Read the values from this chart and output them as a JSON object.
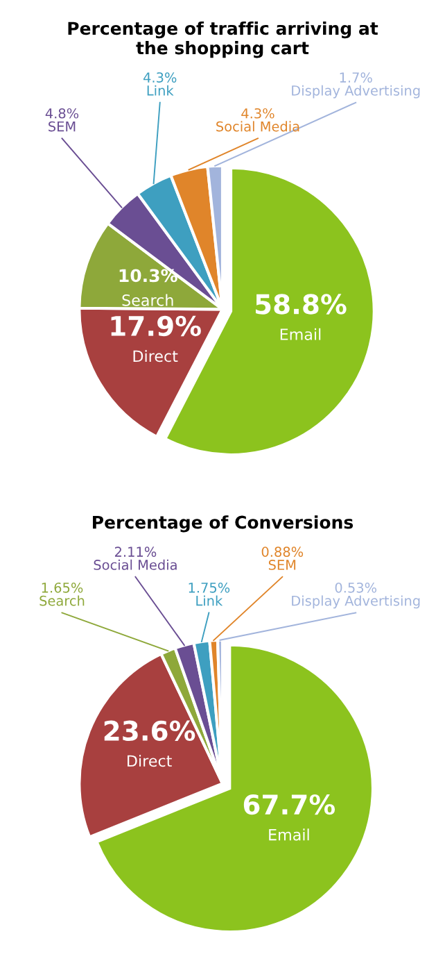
{
  "chart_data": [
    {
      "type": "pie",
      "title": "Percentage of traffic arriving at\nthe shopping cart",
      "categories": [
        "Email",
        "Direct",
        "Search",
        "SEM",
        "Link",
        "Social Media",
        "Display Advertising"
      ],
      "values": [
        58.8,
        17.9,
        10.3,
        4.8,
        4.3,
        4.3,
        1.7
      ],
      "value_labels": [
        "58.8%",
        "17.9%",
        "10.3%",
        "4.8%",
        "4.3%",
        "4.3%",
        "1.7%"
      ],
      "colors": [
        "#8cc31e",
        "#a8403f",
        "#8ea83a",
        "#6a4e93",
        "#3e9fc0",
        "#e0852a",
        "#a2b4dc"
      ]
    },
    {
      "type": "pie",
      "title": "Percentage of Conversions",
      "categories": [
        "Email",
        "Direct",
        "Search",
        "Social Media",
        "Link",
        "SEM",
        "Display Advertising"
      ],
      "values": [
        67.7,
        23.6,
        1.65,
        2.11,
        1.75,
        0.88,
        0.53
      ],
      "value_labels": [
        "67.7%",
        "23.6%",
        "1.65%",
        "2.11%",
        "1.75%",
        "0.88%",
        "0.53%"
      ],
      "colors": [
        "#8cc31e",
        "#a8403f",
        "#8ea83a",
        "#6a4e93",
        "#3e9fc0",
        "#e0852a",
        "#a2b4dc"
      ]
    }
  ]
}
